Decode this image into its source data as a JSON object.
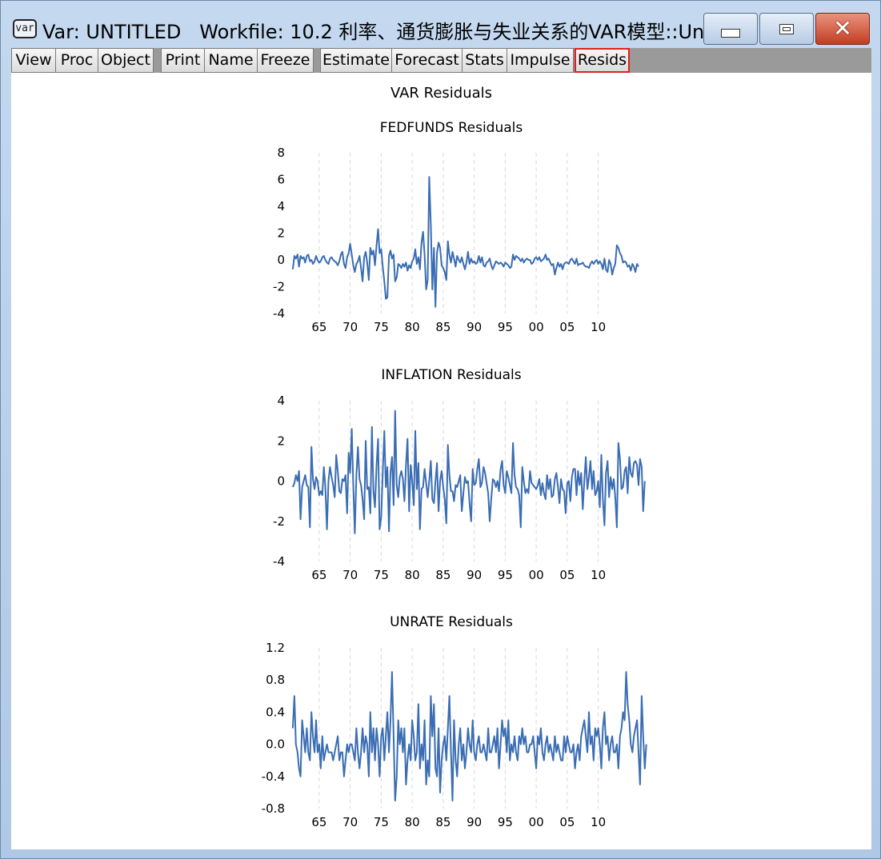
{
  "window": {
    "icon_label": "var",
    "title": "Var: UNTITLED   Workfile: 10.2 利率、通货膨胀与失业关系的VAR模型::Un...",
    "controls": {
      "minimize": "minimize",
      "maximize": "maximize",
      "close": "close"
    }
  },
  "toolbar": {
    "buttons": [
      "View",
      "Proc",
      "Object",
      "Print",
      "Name",
      "Freeze",
      "Estimate",
      "Forecast",
      "Stats",
      "Impulse",
      "Resids"
    ],
    "active": "Resids"
  },
  "colors": {
    "series": "#3a6db3",
    "grid": "#d9d9d9",
    "title_bar": "#bfd3ea",
    "active_border": "#e02020"
  },
  "main_title": "VAR Residuals",
  "chart_data": [
    {
      "type": "line",
      "title": "FEDFUNDS Residuals",
      "xlabel": "",
      "ylabel": "",
      "x_tick_labels": [
        "65",
        "70",
        "75",
        "80",
        "85",
        "90",
        "95",
        "00",
        "05",
        "10"
      ],
      "y_ticks": [
        -4,
        -2,
        0,
        2,
        4,
        6,
        8
      ],
      "ylim": [
        -4,
        8
      ],
      "xlim": [
        1960.5,
        2012.5
      ],
      "grid": true,
      "series": [
        {
          "x_start": 1960.75,
          "x_step": 0.25,
          "values": [
            -0.7,
            0.3,
            0.1,
            0.4,
            -0.5,
            0.3,
            0.1,
            0.2,
            -0.2,
            0.3,
            0.4,
            -0.1,
            0.0,
            -0.3,
            -0.1,
            0.3,
            0.0,
            -0.2,
            -0.1,
            0.2,
            0.3,
            0.0,
            -0.2,
            -0.3,
            0.1,
            0.2,
            0.0,
            -0.1,
            -0.2,
            -0.4,
            -0.1,
            0.4,
            0.6,
            -0.3,
            -0.6,
            0.2,
            0.5,
            1.2,
            0.4,
            -0.4,
            -0.9,
            -0.3,
            -0.1,
            0.3,
            -0.6,
            -1.6,
            0.2,
            0.6,
            -0.2,
            -1.5,
            0.9,
            0.4,
            0.7,
            -0.4,
            1.1,
            2.3,
            0.5,
            0.8,
            -0.5,
            -1.6,
            -2.9,
            -2.8,
            0.3,
            0.7,
            0.1,
            0.4,
            -1.6,
            -1.3,
            -0.3,
            -0.4,
            -0.6,
            -0.3,
            -0.5,
            -0.2,
            -0.8,
            -0.4,
            -0.6,
            -0.1,
            0.1,
            0.8,
            -0.3,
            0.2,
            -0.7,
            1.3,
            2.1,
            0.4,
            -2.2,
            -1.5,
            6.2,
            2.6,
            -2.2,
            0.9,
            -3.5,
            0.5,
            1.3,
            0.9,
            -0.4,
            -0.6,
            -0.9,
            -1.5,
            1.4,
            0.4,
            -0.2,
            0.6,
            0.1,
            -0.5,
            0.3,
            0.0,
            -0.2,
            0.2,
            -0.3,
            -0.7,
            -0.2,
            0.6,
            -0.3,
            0.1,
            -0.2,
            -0.1,
            -0.3,
            -0.2,
            0.3,
            -0.2,
            0.2,
            -0.4,
            -0.5,
            -0.2,
            -0.1,
            0.1,
            -0.4,
            -0.7,
            -0.4,
            -0.1,
            -0.2,
            -0.3,
            -0.2,
            -0.3,
            -0.5,
            -0.2,
            -0.3,
            -0.4,
            -0.6,
            -0.5,
            0.4,
            0.0,
            0.3,
            0.2,
            0.1,
            -0.1,
            0.1,
            -0.2,
            0.0,
            0.1,
            0.0,
            0.0,
            -0.3,
            -0.2,
            0.1,
            0.2,
            0.0,
            0.2,
            -0.1,
            0.0,
            0.1,
            0.4,
            0.0,
            0.1,
            -0.2,
            -0.4,
            -0.3,
            -1.1,
            -0.6,
            -0.2,
            -0.5,
            -0.3,
            -0.7,
            -0.3,
            -0.2,
            -0.2,
            -0.3,
            0.0,
            0.1,
            -0.1,
            -0.3,
            0.1,
            -0.4,
            -0.3,
            -0.3,
            -0.2,
            -0.4,
            -0.5,
            -0.5,
            -0.6,
            -0.3,
            -0.1,
            -0.3,
            -0.1,
            0.0,
            -0.3,
            -0.1,
            -0.3,
            -0.7,
            0.1,
            -0.7,
            -0.9,
            0.0,
            -0.3,
            -1.1,
            -0.6,
            -0.3,
            1.1,
            0.9,
            0.5,
            0.3,
            -0.2,
            -0.1,
            -0.2,
            -0.5,
            -0.4,
            -0.8,
            -0.3,
            -0.5,
            -0.9,
            -0.3,
            -0.5
          ]
        }
      ]
    },
    {
      "type": "line",
      "title": "INFLATION Residuals",
      "xlabel": "",
      "ylabel": "",
      "x_tick_labels": [
        "65",
        "70",
        "75",
        "80",
        "85",
        "90",
        "95",
        "00",
        "05",
        "10"
      ],
      "y_ticks": [
        -4,
        -2,
        0,
        2,
        4
      ],
      "ylim": [
        -4,
        4
      ],
      "xlim": [
        1960.5,
        2012.5
      ],
      "grid": true,
      "series": [
        {
          "x_start": 1960.75,
          "x_step": 0.25,
          "values": [
            -0.3,
            -0.1,
            0.3,
            0.0,
            0.5,
            -1.9,
            -0.3,
            0.0,
            0.3,
            -0.2,
            -0.3,
            -2.3,
            1.7,
            0.1,
            -0.4,
            0.2,
            0.0,
            -0.7,
            -0.5,
            -0.7,
            0.7,
            -0.3,
            -2.4,
            0.0,
            0.7,
            0.2,
            -0.2,
            -0.8,
            1.3,
            0.5,
            -0.5,
            -0.6,
            0.1,
            0.0,
            0.3,
            -1.6,
            1.4,
            0.4,
            2.6,
            -0.2,
            -2.6,
            0.3,
            1.7,
            0.1,
            -0.2,
            -0.9,
            -1.9,
            2.0,
            -0.4,
            -0.3,
            -1.6,
            2.7,
            -0.5,
            -1.3,
            0.8,
            2.1,
            -2.4,
            -1.8,
            0.4,
            2.5,
            -0.3,
            0.7,
            -2.5,
            0.4,
            1.2,
            -1.2,
            3.5,
            -0.2,
            -0.8,
            0.2,
            0.5,
            0.1,
            -1.0,
            0.8,
            2.1,
            -1.5,
            0.8,
            0.0,
            -1.2,
            2.5,
            -0.4,
            0.9,
            -2.4,
            -0.4,
            -0.3,
            0.6,
            -0.1,
            -0.8,
            0.0,
            1.0,
            -0.9,
            -1.1,
            0.0,
            0.9,
            -1.5,
            0.0,
            0.5,
            -0.3,
            -0.9,
            -2.1,
            1.8,
            0.3,
            -0.5,
            -0.5,
            -1.0,
            -0.2,
            -0.3,
            0.0,
            0.3,
            -1.5,
            -0.6,
            0.2,
            -0.1,
            0.0,
            -1.1,
            -2.0,
            0.6,
            -0.2,
            -0.1,
            0.6,
            1.1,
            -0.3,
            -0.1,
            0.7,
            0.4,
            -0.1,
            -0.6,
            -2.0,
            -0.9,
            0.1,
            0.0,
            -0.3,
            0.0,
            -0.5,
            0.6,
            1.0,
            -0.2,
            -0.6,
            0.5,
            0.2,
            -0.2,
            -0.6,
            1.9,
            0.3,
            -0.3,
            -0.4,
            -0.7,
            -2.3,
            0.7,
            0.0,
            -0.6,
            -0.4,
            -0.6,
            0.5,
            -0.1,
            -0.2,
            -0.3,
            -0.4,
            -0.2,
            0.1,
            -0.7,
            -0.1,
            -0.6,
            -0.9,
            0.3,
            -0.4,
            0.1,
            -0.8,
            -0.7,
            0.1,
            0.4,
            -0.3,
            -1.1,
            0.1,
            -0.4,
            -0.5,
            -1.6,
            -0.1,
            0.0,
            -1.0,
            0.2,
            0.6,
            0.6,
            -0.7,
            0.5,
            -0.2,
            0.4,
            -1.4,
            0.0,
            1.2,
            -0.4,
            0.2,
            1.0,
            -0.4,
            0.5,
            -0.7,
            -0.5,
            0.0,
            -1.3,
            1.3,
            -0.9,
            -2.2,
            0.4,
            1.0,
            -0.8,
            0.2,
            -0.4,
            0.1,
            -0.8,
            -2.3,
            1.9,
            1.1,
            -0.4,
            -0.3,
            0.5,
            0.7,
            -0.6,
            1.2,
            0.4,
            0.2,
            0.9,
            1.0,
            0.8,
            -0.2,
            1.1,
            0.7,
            -1.5,
            0.0
          ]
        }
      ]
    },
    {
      "type": "line",
      "title": "UNRATE Residuals",
      "xlabel": "",
      "ylabel": "",
      "x_tick_labels": [
        "65",
        "70",
        "75",
        "80",
        "85",
        "90",
        "95",
        "00",
        "05",
        "10"
      ],
      "y_ticks": [
        -0.8,
        -0.4,
        0.0,
        0.4,
        0.8,
        1.2
      ],
      "y_tick_labels": [
        "-0.8",
        "-0.4",
        "0.0",
        "0.4",
        "0.8",
        "1.2"
      ],
      "ylim": [
        -0.8,
        1.2
      ],
      "xlim": [
        1960.5,
        2012.5
      ],
      "grid": true,
      "series": [
        {
          "x_start": 1960.75,
          "x_step": 0.25,
          "values": [
            0.2,
            0.6,
            0.0,
            -0.1,
            -0.3,
            -0.4,
            0.3,
            0.1,
            -0.1,
            0.2,
            -0.1,
            -0.2,
            0.4,
            0.1,
            -0.1,
            0.3,
            -0.1,
            0.0,
            -0.3,
            0.1,
            -0.2,
            -0.1,
            0.0,
            -0.1,
            -0.1,
            -0.1,
            -0.2,
            -0.1,
            0.0,
            0.1,
            -0.2,
            -0.1,
            -0.1,
            -0.4,
            -0.2,
            0.0,
            -0.1,
            0.0,
            0.0,
            -0.1,
            -0.2,
            0.2,
            -0.1,
            -0.3,
            -0.1,
            0.2,
            -0.1,
            0.1,
            0.0,
            -0.4,
            0.4,
            -0.1,
            0.2,
            -0.2,
            0.2,
            0.0,
            -0.4,
            0.1,
            0.2,
            -0.2,
            0.1,
            0.4,
            -0.1,
            0.3,
            0.9,
            0.1,
            -0.7,
            -0.4,
            0.3,
            0.0,
            0.2,
            -0.1,
            0.2,
            -0.5,
            -0.2,
            0.0,
            -0.2,
            0.3,
            0.1,
            -0.2,
            -0.1,
            0.5,
            -0.3,
            0.0,
            -0.2,
            0.3,
            -0.5,
            -0.2,
            -0.4,
            0.6,
            0.1,
            0.5,
            -0.3,
            -0.4,
            0.2,
            -0.6,
            -0.2,
            0.0,
            0.1,
            -0.2,
            0.2,
            0.6,
            -0.1,
            -0.7,
            0.3,
            -0.2,
            -0.4,
            0.0,
            0.2,
            -0.2,
            0.0,
            -0.3,
            -0.1,
            0.2,
            0.0,
            -0.1,
            0.3,
            -0.1,
            -0.2,
            0.0,
            0.1,
            -0.1,
            -0.1,
            0.0,
            -0.1,
            -0.2,
            0.2,
            -0.1,
            -0.1,
            0.0,
            0.1,
            -0.1,
            0.2,
            -0.3,
            0.0,
            0.3,
            0.1,
            0.2,
            -0.1,
            0.3,
            -0.2,
            0.0,
            -0.1,
            0.1,
            -0.1,
            -0.2,
            0.1,
            0.0,
            0.2,
            0.0,
            0.1,
            -0.1,
            -0.1,
            0.0,
            0.0,
            0.1,
            -0.1,
            -0.3,
            0.1,
            0.0,
            0.2,
            -0.1,
            -0.2,
            0.0,
            0.1,
            -0.1,
            0.0,
            -0.1,
            -0.2,
            0.1,
            -0.1,
            0.0,
            -0.1,
            -0.2,
            -0.2,
            0.1,
            -0.1,
            0.1,
            0.0,
            -0.1,
            -0.1,
            0.0,
            -0.3,
            -0.1,
            0.0,
            -0.2,
            0.1,
            0.2,
            0.3,
            0.1,
            -0.1,
            0.4,
            0.0,
            0.1,
            -0.2,
            0.2,
            0.1,
            0.2,
            0.0,
            -0.3,
            0.2,
            0.4,
            0.0,
            0.1,
            -0.2,
            0.0,
            0.1,
            -0.1,
            -0.1,
            0.0,
            -0.3,
            0.1,
            0.2,
            0.4,
            0.3,
            0.9,
            0.5,
            0.3,
            0.0,
            -0.1,
            0.1,
            0.2,
            0.3,
            -0.1,
            -0.5,
            0.6,
            0.1,
            -0.3,
            0.0
          ]
        }
      ]
    }
  ]
}
